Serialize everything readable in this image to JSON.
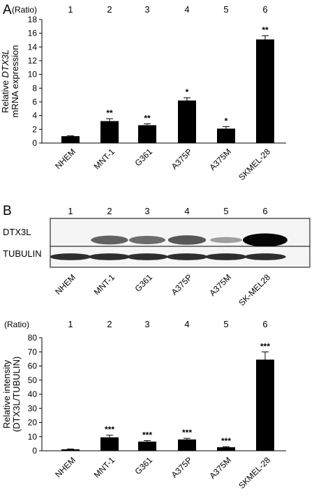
{
  "panel_a": {
    "letter": "A"
  },
  "panel_b": {
    "letter": "B"
  },
  "lane_numbers": [
    "1",
    "2",
    "3",
    "4",
    "5",
    "6"
  ],
  "ratio_label": "(Ratio)",
  "chart_data": [
    {
      "type": "bar",
      "panel": "A",
      "categories": [
        "NHEM",
        "MNT-1",
        "G361",
        "A375P",
        "A375M",
        "SKMEL-28"
      ],
      "values": [
        1.0,
        3.2,
        2.6,
        6.2,
        2.1,
        15.1
      ],
      "errors": [
        0.05,
        0.35,
        0.2,
        0.4,
        0.3,
        0.55
      ],
      "significance": [
        "",
        "**",
        "**",
        "*",
        "*",
        "**"
      ],
      "ylabel": [
        "Relative DTX3L",
        "mRNA expression"
      ],
      "ylim": [
        0,
        18
      ],
      "yticks": [
        0,
        2,
        4,
        6,
        8,
        10,
        12,
        14,
        16,
        18
      ],
      "bar_color": "#000000"
    },
    {
      "type": "bar",
      "panel": "B",
      "categories": [
        "NHEM",
        "MNT-1",
        "G361",
        "A375P",
        "A375M",
        "SKMEL-28"
      ],
      "values": [
        1.0,
        9.5,
        6.5,
        8.0,
        2.5,
        64.5
      ],
      "errors": [
        0.3,
        1.5,
        0.7,
        0.8,
        0.4,
        5.5
      ],
      "significance": [
        "",
        "***",
        "***",
        "***",
        "***",
        "***"
      ],
      "ylabel": [
        "Relative intensity",
        "(DTX3L/TUBULIN)"
      ],
      "ylim": [
        0,
        80
      ],
      "yticks": [
        0,
        10,
        20,
        30,
        40,
        50,
        60,
        70,
        80
      ],
      "bar_color": "#000000"
    }
  ],
  "western_blot": {
    "rows": [
      {
        "label": "DTX3L",
        "intensities": [
          0.0,
          0.55,
          0.5,
          0.6,
          0.25,
          1.0
        ]
      },
      {
        "label": "TUBULIN",
        "intensities": [
          0.8,
          0.8,
          0.8,
          0.8,
          0.8,
          0.8
        ]
      }
    ],
    "lane_labels": [
      "NHEM",
      "MNT-1",
      "G361",
      "A375P",
      "A375M",
      "SK-MEL28"
    ]
  }
}
